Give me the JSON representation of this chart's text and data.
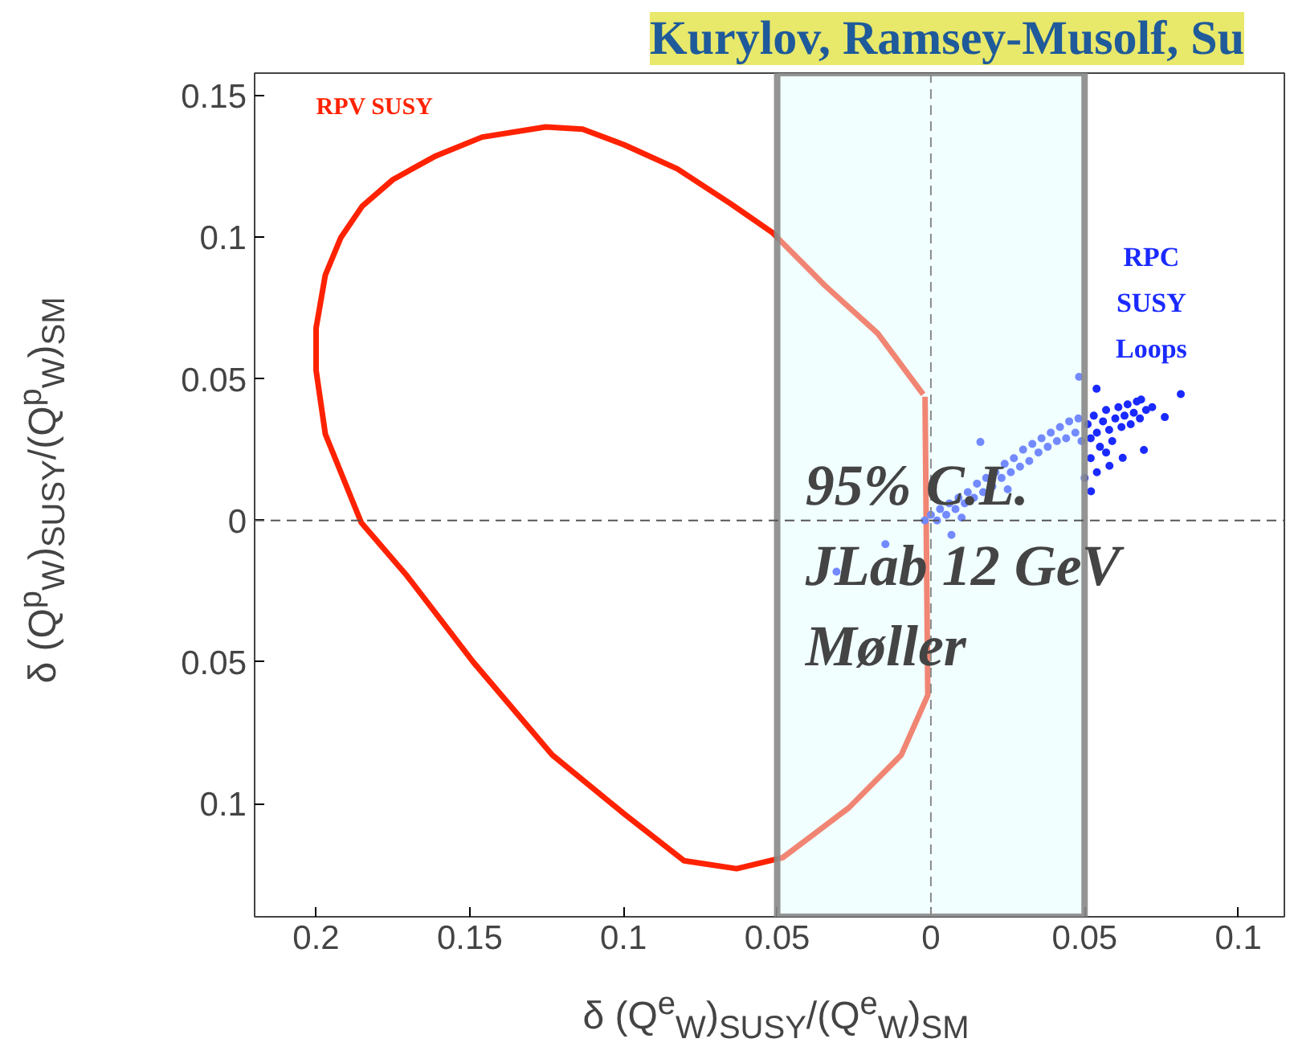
{
  "chart_data": {
    "type": "line",
    "title": "Kurylov, Ramsey-Musolf, Su",
    "xlabel": "δ (Q$^{e}$$_{W}$)$_{SUSY}$/(Q$^{e}$$_{W}$)$_{SM}$",
    "ylabel": "δ (Q$^{p}$$_{W}$)$_{SUSY}$/(Q$^{p}$$_{W}$)$_{SM}$",
    "xlim": [
      -0.22,
      0.115
    ],
    "ylim": [
      -0.14,
      0.158
    ],
    "xticks": [
      {
        "value": -0.2,
        "label": "0.2"
      },
      {
        "value": -0.15,
        "label": "0.15"
      },
      {
        "value": -0.1,
        "label": "0.1"
      },
      {
        "value": -0.05,
        "label": "0.05"
      },
      0,
      0.05,
      0.1
    ],
    "yticks": [
      {
        "value": -0.1,
        "label": "0.1"
      },
      {
        "value": -0.05,
        "label": "0.05"
      },
      0,
      0.05,
      0.1,
      0.15
    ],
    "grid": false,
    "series": [
      {
        "name": "RPV SUSY",
        "color": "#ff2200",
        "line_style": "solid",
        "x": [
          -0.0019,
          -0.001,
          -0.0096,
          -0.0267,
          -0.0482,
          -0.0632,
          -0.0803,
          -0.0996,
          -0.1232,
          -0.1489,
          -0.1704,
          -0.1853,
          -0.197,
          -0.2,
          -0.2,
          -0.197,
          -0.192,
          -0.185,
          -0.175,
          -0.161,
          -0.146,
          -0.1253,
          -0.1133,
          -0.0996,
          -0.0825,
          -0.0653,
          -0.0516,
          -0.0345,
          -0.0173,
          -0.0025
        ],
        "values": [
          0.0437,
          -0.0617,
          -0.0828,
          -0.1015,
          -0.1191,
          -0.123,
          -0.1202,
          -0.1038,
          -0.0828,
          -0.05,
          -0.0196,
          -0.0008,
          0.0305,
          0.053,
          0.068,
          0.0867,
          0.0998,
          0.111,
          0.1204,
          0.1288,
          0.1354,
          0.139,
          0.1382,
          0.1326,
          0.1242,
          0.112,
          0.1017,
          0.083,
          0.0661,
          0.0445
        ]
      },
      {
        "name": "RPC SUSY Loops",
        "type": "scatter",
        "color": "#1a2aff",
        "marker": "circle",
        "x": [
          -0.002,
          0.0,
          0.002,
          0.003,
          0.005,
          0.006,
          0.008,
          0.009,
          0.011,
          0.012,
          0.014,
          0.015,
          0.017,
          0.018,
          0.02,
          0.021,
          0.023,
          0.024,
          0.026,
          0.027,
          0.029,
          0.03,
          0.032,
          0.033,
          0.035,
          0.036,
          0.038,
          0.039,
          0.041,
          0.042,
          0.044,
          0.045,
          0.047,
          0.048,
          0.049,
          0.0161,
          0.0067,
          -0.0148,
          -0.0307,
          0.01,
          0.025,
          0.051,
          0.052,
          0.053,
          0.054,
          0.055,
          0.056,
          0.057,
          0.058,
          0.059,
          0.06,
          0.061,
          0.062,
          0.063,
          0.064,
          0.065,
          0.066,
          0.067,
          0.068,
          0.07,
          0.072,
          0.052,
          0.054,
          0.0813,
          0.0521,
          0.0482,
          0.0761,
          0.0693,
          0.0624,
          0.0581,
          0.0684,
          0.0539,
          0.05,
          0.057
        ],
        "values": [
          0.0,
          0.002,
          0.0,
          0.004,
          0.002,
          0.006,
          0.004,
          0.008,
          0.006,
          0.01,
          0.008,
          0.013,
          0.01,
          0.015,
          0.012,
          0.017,
          0.015,
          0.02,
          0.017,
          0.022,
          0.019,
          0.025,
          0.021,
          0.027,
          0.024,
          0.029,
          0.026,
          0.031,
          0.028,
          0.033,
          0.029,
          0.035,
          0.031,
          0.036,
          0.028,
          0.0277,
          -0.0051,
          -0.0084,
          -0.0181,
          0.001,
          0.011,
          0.034,
          0.029,
          0.037,
          0.031,
          0.026,
          0.035,
          0.039,
          0.032,
          0.028,
          0.036,
          0.04,
          0.033,
          0.037,
          0.041,
          0.034,
          0.038,
          0.042,
          0.036,
          0.039,
          0.04,
          0.022,
          0.017,
          0.0446,
          0.0103,
          0.0507,
          0.0365,
          0.0249,
          0.0221,
          0.0193,
          0.0427,
          0.0465,
          0.015,
          0.024
        ]
      }
    ],
    "bands": [
      {
        "axis": "x",
        "from": -0.05,
        "to": 0.05,
        "color": "#e0ffff"
      }
    ],
    "ref_lines": [
      {
        "axis": "x",
        "value": 0,
        "line_style": "dashed",
        "color": "#8a8a8a"
      },
      {
        "axis": "y",
        "value": 0,
        "line_style": "dashed",
        "color": "#555555"
      }
    ],
    "annotations": [
      "95% C.L.\nJLab 12 GeV\nMøller"
    ]
  }
}
